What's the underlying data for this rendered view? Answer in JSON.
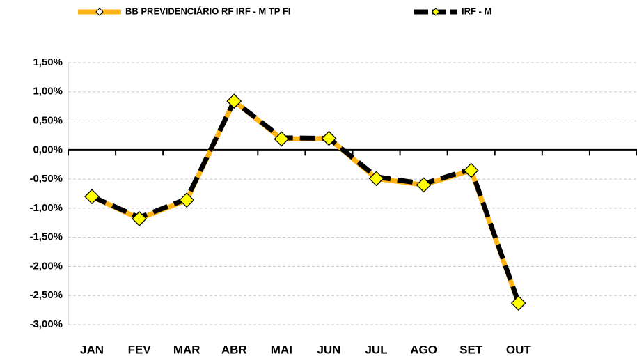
{
  "chart_data": {
    "type": "line",
    "categories": [
      "JAN",
      "FEV",
      "MAR",
      "ABR",
      "MAI",
      "JUN",
      "JUL",
      "AGO",
      "SET",
      "OUT",
      null,
      null
    ],
    "series": [
      {
        "name": "BB PREVIDENCIÁRIO RF IRF - M TP FI",
        "color": "#ffb515",
        "values": [
          -0.8,
          -1.18,
          -0.86,
          0.84,
          0.19,
          0.2,
          -0.49,
          -0.6,
          -0.35,
          -2.63,
          null,
          null
        ]
      },
      {
        "name": "IRF - M",
        "color": "#000000",
        "values": [
          -0.8,
          -1.16,
          -0.84,
          0.84,
          0.21,
          0.2,
          -0.46,
          -0.58,
          -0.33,
          -2.62,
          null,
          null
        ]
      }
    ],
    "ylim": [
      -3.0,
      1.5
    ],
    "yticks": [
      {
        "value": -3.0,
        "label": "-3,00%"
      },
      {
        "value": -2.5,
        "label": "-2,50%"
      },
      {
        "value": -2.0,
        "label": "-2,00%"
      },
      {
        "value": -1.5,
        "label": "-1,50%"
      },
      {
        "value": -1.0,
        "label": "-1,00%"
      },
      {
        "value": -0.5,
        "label": "-0,50%"
      },
      {
        "value": 0.0,
        "label": "0,00%"
      },
      {
        "value": 0.5,
        "label": "0,50%"
      },
      {
        "value": 1.0,
        "label": "1,00%"
      },
      {
        "value": 1.5,
        "label": "1,50%"
      }
    ],
    "grid": true,
    "legend": "top"
  }
}
